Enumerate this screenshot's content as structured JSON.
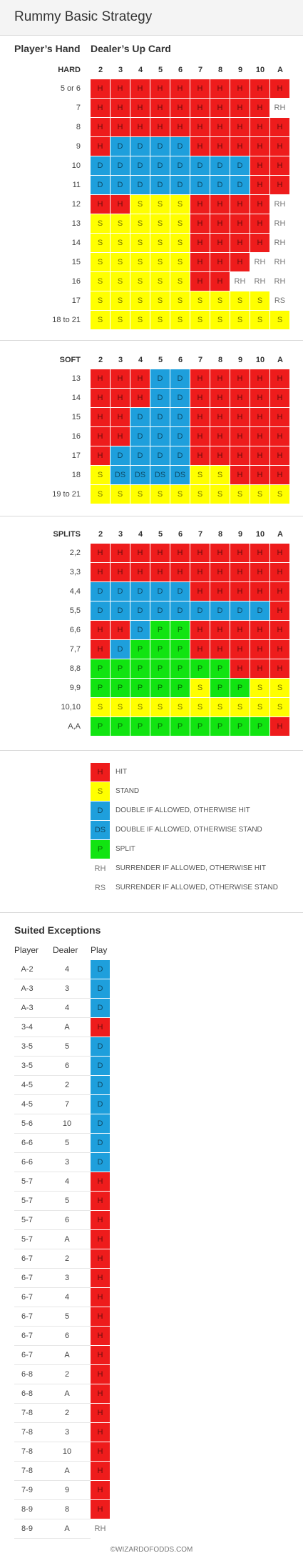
{
  "title": "Rummy Basic Strategy",
  "strategy": {
    "players_hand_label": "Player’s Hand",
    "dealer_label": "Dealer’s Up Card",
    "sections": [
      {
        "name": "HARD",
        "upcards": [
          "2",
          "3",
          "4",
          "5",
          "6",
          "7",
          "8",
          "9",
          "10",
          "A"
        ],
        "rows": [
          {
            "hand": "5 or 6",
            "plays": [
              "H",
              "H",
              "H",
              "H",
              "H",
              "H",
              "H",
              "H",
              "H",
              "H"
            ]
          },
          {
            "hand": "7",
            "plays": [
              "H",
              "H",
              "H",
              "H",
              "H",
              "H",
              "H",
              "H",
              "H",
              "RH"
            ]
          },
          {
            "hand": "8",
            "plays": [
              "H",
              "H",
              "H",
              "H",
              "H",
              "H",
              "H",
              "H",
              "H",
              "H"
            ]
          },
          {
            "hand": "9",
            "plays": [
              "H",
              "D",
              "D",
              "D",
              "D",
              "H",
              "H",
              "H",
              "H",
              "H"
            ]
          },
          {
            "hand": "10",
            "plays": [
              "D",
              "D",
              "D",
              "D",
              "D",
              "D",
              "D",
              "D",
              "H",
              "H"
            ]
          },
          {
            "hand": "11",
            "plays": [
              "D",
              "D",
              "D",
              "D",
              "D",
              "D",
              "D",
              "D",
              "H",
              "H"
            ]
          },
          {
            "hand": "12",
            "plays": [
              "H",
              "H",
              "S",
              "S",
              "S",
              "H",
              "H",
              "H",
              "H",
              "RH"
            ]
          },
          {
            "hand": "13",
            "plays": [
              "S",
              "S",
              "S",
              "S",
              "S",
              "H",
              "H",
              "H",
              "H",
              "RH"
            ]
          },
          {
            "hand": "14",
            "plays": [
              "S",
              "S",
              "S",
              "S",
              "S",
              "H",
              "H",
              "H",
              "H",
              "RH"
            ]
          },
          {
            "hand": "15",
            "plays": [
              "S",
              "S",
              "S",
              "S",
              "S",
              "H",
              "H",
              "H",
              "RH",
              "RH"
            ]
          },
          {
            "hand": "16",
            "plays": [
              "S",
              "S",
              "S",
              "S",
              "S",
              "H",
              "H",
              "RH",
              "RH",
              "RH"
            ]
          },
          {
            "hand": "17",
            "plays": [
              "S",
              "S",
              "S",
              "S",
              "S",
              "S",
              "S",
              "S",
              "S",
              "RS"
            ]
          },
          {
            "hand": "18 to 21",
            "plays": [
              "S",
              "S",
              "S",
              "S",
              "S",
              "S",
              "S",
              "S",
              "S",
              "S"
            ]
          }
        ]
      },
      {
        "name": "SOFT",
        "upcards": [
          "2",
          "3",
          "4",
          "5",
          "6",
          "7",
          "8",
          "9",
          "10",
          "A"
        ],
        "rows": [
          {
            "hand": "13",
            "plays": [
              "H",
              "H",
              "H",
              "D",
              "D",
              "H",
              "H",
              "H",
              "H",
              "H"
            ]
          },
          {
            "hand": "14",
            "plays": [
              "H",
              "H",
              "H",
              "D",
              "D",
              "H",
              "H",
              "H",
              "H",
              "H"
            ]
          },
          {
            "hand": "15",
            "plays": [
              "H",
              "H",
              "D",
              "D",
              "D",
              "H",
              "H",
              "H",
              "H",
              "H"
            ]
          },
          {
            "hand": "16",
            "plays": [
              "H",
              "H",
              "D",
              "D",
              "D",
              "H",
              "H",
              "H",
              "H",
              "H"
            ]
          },
          {
            "hand": "17",
            "plays": [
              "H",
              "D",
              "D",
              "D",
              "D",
              "H",
              "H",
              "H",
              "H",
              "H"
            ]
          },
          {
            "hand": "18",
            "plays": [
              "S",
              "DS",
              "DS",
              "DS",
              "DS",
              "S",
              "S",
              "H",
              "H",
              "H"
            ]
          },
          {
            "hand": "19 to 21",
            "plays": [
              "S",
              "S",
              "S",
              "S",
              "S",
              "S",
              "S",
              "S",
              "S",
              "S"
            ]
          }
        ]
      },
      {
        "name": "SPLITS",
        "upcards": [
          "2",
          "3",
          "4",
          "5",
          "6",
          "7",
          "8",
          "9",
          "10",
          "A"
        ],
        "rows": [
          {
            "hand": "2,2",
            "plays": [
              "H",
              "H",
              "H",
              "H",
              "H",
              "H",
              "H",
              "H",
              "H",
              "H"
            ]
          },
          {
            "hand": "3,3",
            "plays": [
              "H",
              "H",
              "H",
              "H",
              "H",
              "H",
              "H",
              "H",
              "H",
              "H"
            ]
          },
          {
            "hand": "4,4",
            "plays": [
              "D",
              "D",
              "D",
              "D",
              "D",
              "H",
              "H",
              "H",
              "H",
              "H"
            ]
          },
          {
            "hand": "5,5",
            "plays": [
              "D",
              "D",
              "D",
              "D",
              "D",
              "D",
              "D",
              "D",
              "D",
              "H"
            ]
          },
          {
            "hand": "6,6",
            "plays": [
              "H",
              "H",
              "D",
              "P",
              "P",
              "H",
              "H",
              "H",
              "H",
              "H"
            ]
          },
          {
            "hand": "7,7",
            "plays": [
              "H",
              "D",
              "P",
              "P",
              "P",
              "H",
              "H",
              "H",
              "H",
              "H"
            ]
          },
          {
            "hand": "8,8",
            "plays": [
              "P",
              "P",
              "P",
              "P",
              "P",
              "P",
              "P",
              "H",
              "H",
              "H"
            ]
          },
          {
            "hand": "9,9",
            "plays": [
              "P",
              "P",
              "P",
              "P",
              "P",
              "S",
              "P",
              "P",
              "S",
              "S"
            ]
          },
          {
            "hand": "10,10",
            "plays": [
              "S",
              "S",
              "S",
              "S",
              "S",
              "S",
              "S",
              "S",
              "S",
              "S"
            ]
          },
          {
            "hand": "A,A",
            "plays": [
              "P",
              "P",
              "P",
              "P",
              "P",
              "P",
              "P",
              "P",
              "P",
              "H"
            ]
          }
        ]
      }
    ]
  },
  "legend": [
    {
      "code": "H",
      "text": "HIT"
    },
    {
      "code": "S",
      "text": "STAND"
    },
    {
      "code": "D",
      "text": "DOUBLE IF ALLOWED, OTHERWISE HIT"
    },
    {
      "code": "DS",
      "text": "DOUBLE IF ALLOWED, OTHERWISE STAND"
    },
    {
      "code": "P",
      "text": "SPLIT"
    },
    {
      "code": "RH",
      "text": "SURRENDER IF ALLOWED, OTHERWISE HIT"
    },
    {
      "code": "RS",
      "text": "SURRENDER IF ALLOWED, OTHERWISE STAND"
    }
  ],
  "suited_exceptions": {
    "title": "Suited Exceptions",
    "columns": [
      "Player",
      "Dealer",
      "Play"
    ],
    "rows": [
      [
        "A-2",
        "4",
        "D"
      ],
      [
        "A-3",
        "3",
        "D"
      ],
      [
        "A-3",
        "4",
        "D"
      ],
      [
        "3-4",
        "A",
        "H"
      ],
      [
        "3-5",
        "5",
        "D"
      ],
      [
        "3-5",
        "6",
        "D"
      ],
      [
        "4-5",
        "2",
        "D"
      ],
      [
        "4-5",
        "7",
        "D"
      ],
      [
        "5-6",
        "10",
        "D"
      ],
      [
        "6-6",
        "5",
        "D"
      ],
      [
        "6-6",
        "3",
        "D"
      ],
      [
        "5-7",
        "4",
        "H"
      ],
      [
        "5-7",
        "5",
        "H"
      ],
      [
        "5-7",
        "6",
        "H"
      ],
      [
        "5-7",
        "A",
        "H"
      ],
      [
        "6-7",
        "2",
        "H"
      ],
      [
        "6-7",
        "3",
        "H"
      ],
      [
        "6-7",
        "4",
        "H"
      ],
      [
        "6-7",
        "5",
        "H"
      ],
      [
        "6-7",
        "6",
        "H"
      ],
      [
        "6-7",
        "A",
        "H"
      ],
      [
        "6-8",
        "2",
        "H"
      ],
      [
        "6-8",
        "A",
        "H"
      ],
      [
        "7-8",
        "2",
        "H"
      ],
      [
        "7-8",
        "3",
        "H"
      ],
      [
        "7-8",
        "10",
        "H"
      ],
      [
        "7-8",
        "A",
        "H"
      ],
      [
        "7-9",
        "9",
        "H"
      ],
      [
        "8-9",
        "8",
        "H"
      ],
      [
        "8-9",
        "A",
        "RH"
      ]
    ]
  },
  "footer": "©WIZARDOFODDS.COM",
  "colors": {
    "H": "#ee1c1c",
    "S": "#ffff00",
    "D": "#1e9fdc",
    "DS": "#1e9fdc",
    "P": "#11e411",
    "RH": "#ffffff",
    "RS": "#ffffff"
  }
}
